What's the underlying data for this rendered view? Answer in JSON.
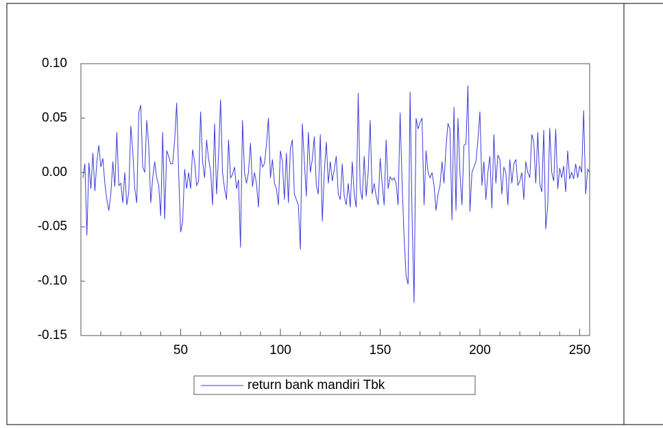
{
  "chart_data": {
    "type": "line",
    "xlim": [
      0,
      255
    ],
    "xticks": [
      50,
      100,
      150,
      200,
      250
    ],
    "xminor_ticks": [
      10,
      20,
      30,
      40,
      60,
      70,
      80,
      90,
      110,
      120,
      130,
      140,
      160,
      170,
      180,
      190,
      210,
      220,
      230,
      240
    ],
    "ylim": [
      -0.15,
      0.1
    ],
    "yticks": [
      {
        "value": 0.1,
        "label": "0.10"
      },
      0.05,
      {
        "value": 0,
        "label": "0.00"
      },
      -0.05,
      {
        "value": -0.1,
        "label": "-0.10"
      },
      -0.15
    ],
    "legend": "bottom",
    "x": [
      1,
      2,
      3,
      4,
      5,
      6,
      7,
      8,
      9,
      10,
      11,
      12,
      13,
      14,
      15,
      16,
      17,
      18,
      19,
      20,
      21,
      22,
      23,
      24,
      25,
      26,
      27,
      28,
      29,
      30,
      31,
      32,
      33,
      34,
      35,
      36,
      37,
      38,
      39,
      40,
      41,
      42,
      43,
      44,
      45,
      46,
      47,
      48,
      49,
      50,
      51,
      52,
      53,
      54,
      55,
      56,
      57,
      58,
      59,
      60,
      61,
      62,
      63,
      64,
      65,
      66,
      67,
      68,
      69,
      70,
      71,
      72,
      73,
      74,
      75,
      76,
      77,
      78,
      79,
      80,
      81,
      82,
      83,
      84,
      85,
      86,
      87,
      88,
      89,
      90,
      91,
      92,
      93,
      94,
      95,
      96,
      97,
      98,
      99,
      100,
      101,
      102,
      103,
      104,
      105,
      106,
      107,
      108,
      109,
      110,
      111,
      112,
      113,
      114,
      115,
      116,
      117,
      118,
      119,
      120,
      121,
      122,
      123,
      124,
      125,
      126,
      127,
      128,
      129,
      130,
      131,
      132,
      133,
      134,
      135,
      136,
      137,
      138,
      139,
      140,
      141,
      142,
      143,
      144,
      145,
      146,
      147,
      148,
      149,
      150,
      151,
      152,
      153,
      154,
      155,
      156,
      157,
      158,
      159,
      160,
      161,
      162,
      163,
      164,
      165,
      166,
      167,
      168,
      169,
      170,
      171,
      172,
      173,
      174,
      175,
      176,
      177,
      178,
      179,
      180,
      181,
      182,
      183,
      184,
      185,
      186,
      187,
      188,
      189,
      190,
      191,
      192,
      193,
      194,
      195,
      196,
      197,
      198,
      199,
      200,
      201,
      202,
      203,
      204,
      205,
      206,
      207,
      208,
      209,
      210,
      211,
      212,
      213,
      214,
      215,
      216,
      217,
      218,
      219,
      220,
      221,
      222,
      223,
      224,
      225,
      226,
      227,
      228,
      229,
      230,
      231,
      232,
      233,
      234,
      235,
      236,
      237,
      238,
      239,
      240,
      241,
      242,
      243,
      244,
      245,
      246,
      247,
      248,
      249,
      250,
      251,
      252,
      253,
      254,
      255
    ],
    "series": [
      {
        "name": "return bank mandiri Tbk",
        "color": "#3a3ad6",
        "values": [
          -0.005,
          0.008,
          -0.058,
          0.009,
          -0.015,
          0.018,
          -0.017,
          0.01,
          0.025,
          0.005,
          0.013,
          -0.01,
          -0.025,
          -0.035,
          -0.02,
          0.01,
          -0.013,
          0.037,
          -0.012,
          -0.01,
          -0.028,
          0.0,
          -0.03,
          -0.018,
          0.043,
          0.02,
          -0.015,
          -0.028,
          0.055,
          0.062,
          0.005,
          0.0,
          0.048,
          0.025,
          -0.028,
          -0.005,
          0.01,
          -0.005,
          -0.012,
          -0.04,
          0.037,
          -0.043,
          0.02,
          0.015,
          0.008,
          0.008,
          0.03,
          0.064,
          0.0,
          -0.055,
          -0.045,
          0.003,
          -0.015,
          0.0,
          -0.015,
          0.021,
          0.01,
          -0.012,
          -0.008,
          0.056,
          0.01,
          -0.005,
          0.03,
          0.012,
          0.002,
          -0.03,
          0.045,
          -0.02,
          0.015,
          0.067,
          0.0,
          -0.015,
          -0.025,
          0.03,
          -0.005,
          -0.002,
          0.005,
          -0.015,
          -0.007,
          -0.069,
          0.048,
          0.0,
          -0.01,
          0.0,
          0.027,
          -0.013,
          0.0,
          -0.01,
          -0.032,
          0.015,
          0.005,
          0.008,
          0.025,
          0.05,
          -0.005,
          0.012,
          -0.01,
          -0.015,
          -0.03,
          0.02,
          0.01,
          -0.025,
          0.018,
          -0.028,
          0.022,
          0.03,
          -0.02,
          -0.025,
          -0.03,
          -0.071,
          0.045,
          0.01,
          -0.022,
          0.037,
          0.0,
          0.012,
          0.033,
          -0.012,
          -0.02,
          0.035,
          -0.045,
          0.0,
          0.028,
          -0.01,
          0.01,
          -0.008,
          0.003,
          0.015,
          -0.02,
          -0.025,
          0.008,
          -0.022,
          -0.03,
          -0.01,
          -0.032,
          0.01,
          -0.02,
          -0.032,
          0.073,
          -0.015,
          -0.025,
          0.015,
          -0.022,
          0.0,
          0.048,
          -0.02,
          -0.01,
          -0.022,
          -0.03,
          0.013,
          -0.01,
          -0.03,
          0.03,
          -0.015,
          -0.004,
          -0.007,
          -0.005,
          -0.01,
          -0.03,
          0.055,
          -0.01,
          -0.06,
          -0.095,
          -0.103,
          0.074,
          -0.04,
          -0.12,
          0.05,
          0.04,
          0.046,
          0.05,
          -0.03,
          0.02,
          0.0,
          -0.005,
          0.0,
          -0.012,
          -0.035,
          -0.02,
          -0.012,
          0.01,
          -0.01,
          0.023,
          0.045,
          0.04,
          -0.044,
          0.06,
          -0.035,
          0.05,
          0.0,
          -0.03,
          0.025,
          0.026,
          0.08,
          -0.036,
          0.0,
          0.005,
          0.01,
          0.03,
          0.056,
          -0.012,
          0.01,
          -0.025,
          0.0,
          0.015,
          -0.033,
          0.035,
          -0.01,
          0.016,
          0.012,
          -0.02,
          0.005,
          0.0,
          -0.03,
          0.012,
          -0.01,
          0.008,
          0.012,
          -0.012,
          -0.008,
          0.0,
          -0.025,
          0.01,
          0.0,
          -0.005,
          0.035,
          0.028,
          -0.01,
          0.037,
          -0.01,
          -0.018,
          0.039,
          -0.052,
          -0.03,
          0.041,
          0.0,
          -0.008,
          0.04,
          -0.015,
          0.004,
          -0.005,
          0.006,
          -0.018,
          0.02,
          -0.006,
          0.0,
          -0.006,
          0.008,
          -0.005,
          0.006,
          0.0,
          0.057,
          -0.02,
          0.003,
          0.0
        ]
      }
    ]
  }
}
